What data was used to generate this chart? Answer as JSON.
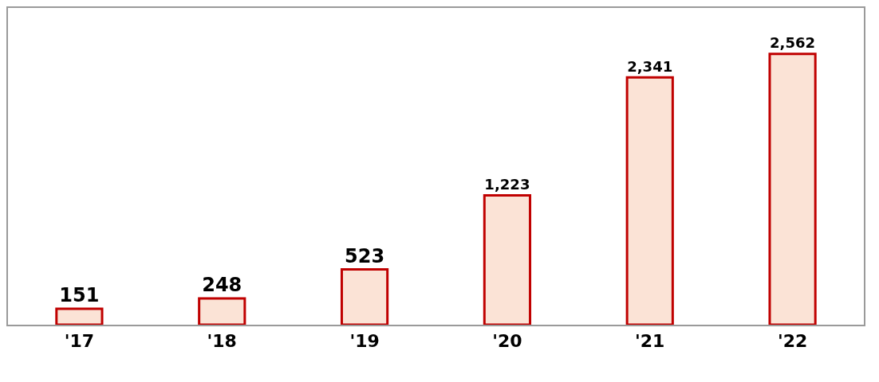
{
  "chart_data": {
    "type": "bar",
    "categories": [
      "'17",
      "'18",
      "'19",
      "'20",
      "'21",
      "'22"
    ],
    "values": [
      151,
      248,
      523,
      1223,
      2341,
      2562
    ],
    "color": "#fbe3d6",
    "value_labels": [
      "151",
      "248",
      "523",
      "1,223",
      "2,341",
      "2,562"
    ],
    "grid": false,
    "legend": false
  }
}
